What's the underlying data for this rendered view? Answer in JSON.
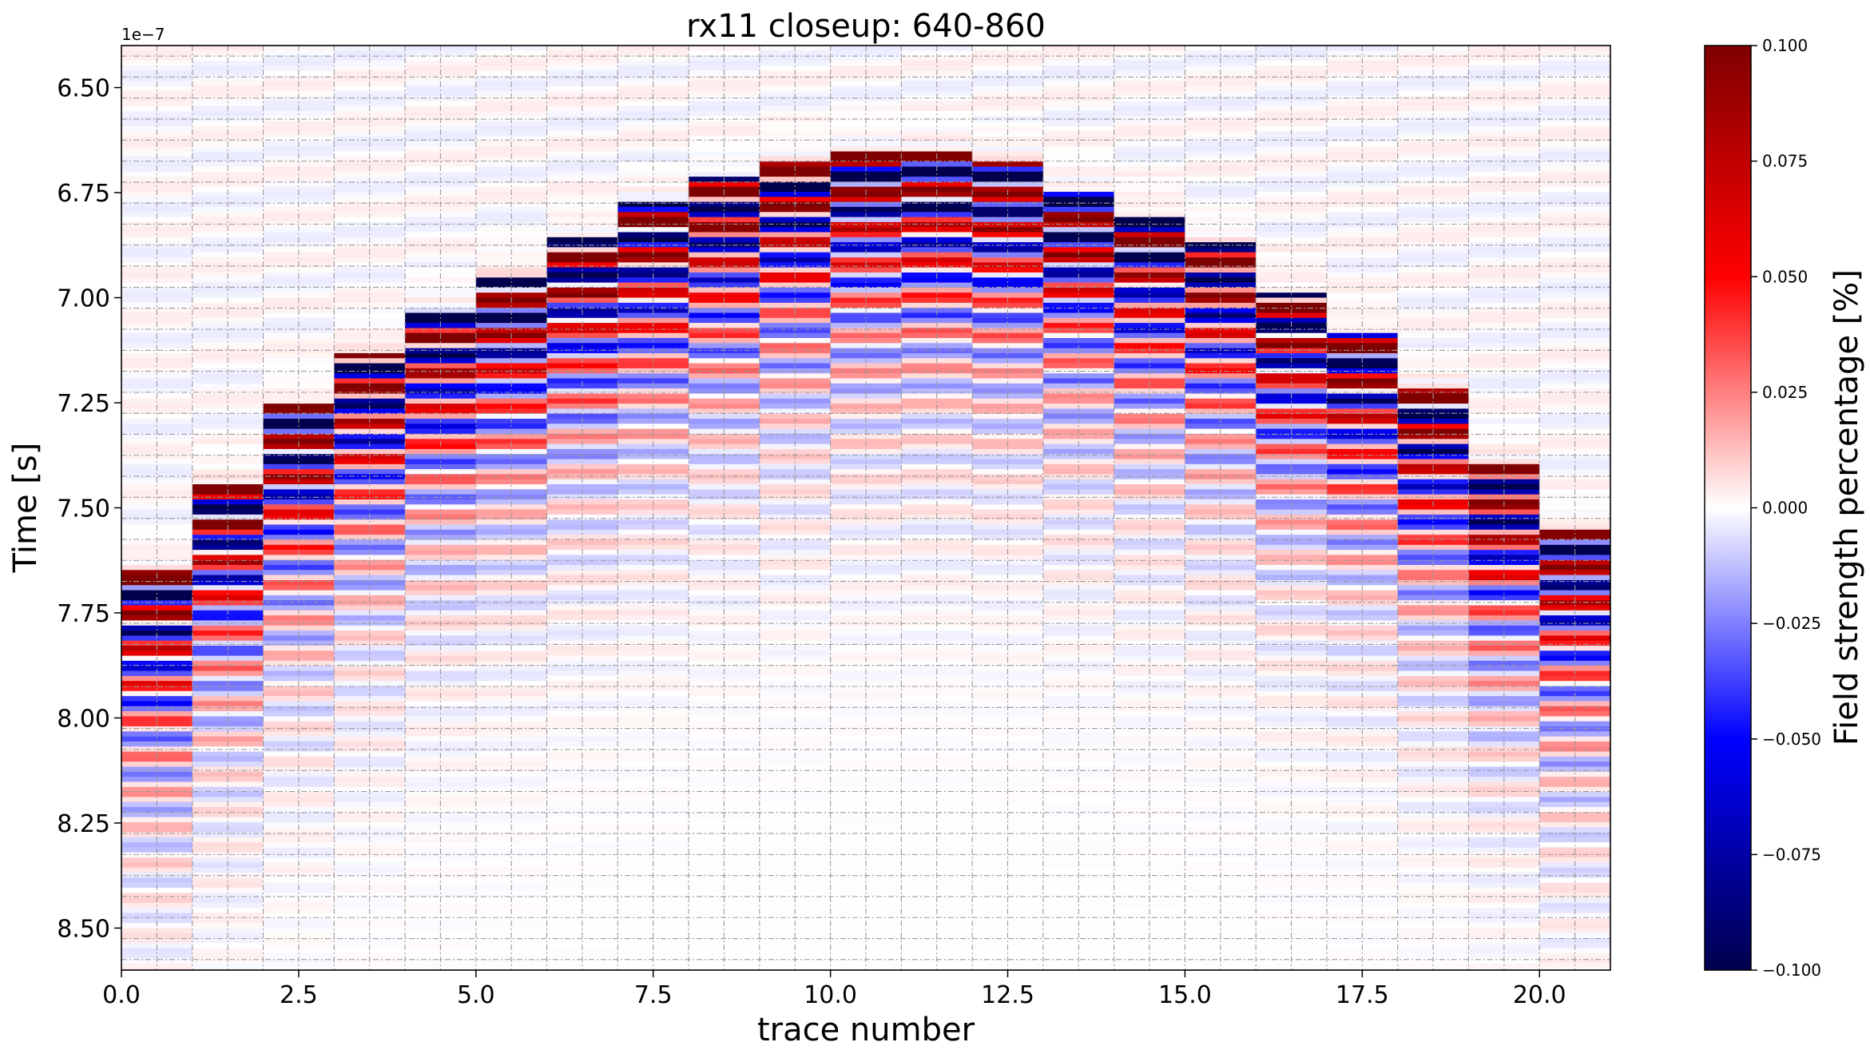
{
  "chart_data": {
    "type": "heatmap",
    "title": "rx11 closeup: 640-860",
    "xlabel": "trace number",
    "ylabel": "Time [s]",
    "y_offset_label": "1e−7",
    "xlim": [
      0.0,
      21.0
    ],
    "ylim": [
      8.6,
      6.4
    ],
    "y_unit_scale": 1e-07,
    "y_inverted": true,
    "x_ticks": [
      "0.0",
      "2.5",
      "5.0",
      "7.5",
      "10.0",
      "12.5",
      "15.0",
      "17.5",
      "20.0"
    ],
    "y_ticks": [
      "6.50",
      "6.75",
      "7.00",
      "7.25",
      "7.50",
      "7.75",
      "8.00",
      "8.25",
      "8.50"
    ],
    "grid": true,
    "colormap": "seismic",
    "colorbar": {
      "label": "Field strength percentage [%]",
      "range": [
        -0.1,
        0.1
      ],
      "ticks": [
        "0.100",
        "0.075",
        "0.050",
        "0.025",
        "0.000",
        "−0.025",
        "−0.050",
        "−0.075",
        "−0.100"
      ]
    },
    "traces": [
      {
        "trace": 0,
        "arrival": 7.64
      },
      {
        "trace": 1,
        "arrival": 7.44
      },
      {
        "trace": 2,
        "arrival": 7.25
      },
      {
        "trace": 3,
        "arrival": 7.13
      },
      {
        "trace": 4,
        "arrival": 7.02
      },
      {
        "trace": 5,
        "arrival": 6.94
      },
      {
        "trace": 6,
        "arrival": 6.85
      },
      {
        "trace": 7,
        "arrival": 6.77
      },
      {
        "trace": 8,
        "arrival": 6.71
      },
      {
        "trace": 9,
        "arrival": 6.67
      },
      {
        "trace": 10,
        "arrival": 6.65
      },
      {
        "trace": 11,
        "arrival": 6.65
      },
      {
        "trace": 12,
        "arrival": 6.67
      },
      {
        "trace": 13,
        "arrival": 6.74
      },
      {
        "trace": 14,
        "arrival": 6.8
      },
      {
        "trace": 15,
        "arrival": 6.86
      },
      {
        "trace": 16,
        "arrival": 6.98
      },
      {
        "trace": 17,
        "arrival": 7.08
      },
      {
        "trace": 18,
        "arrival": 7.21
      },
      {
        "trace": 19,
        "arrival": 7.39
      },
      {
        "trace": 20,
        "arrival": 7.55
      }
    ]
  }
}
